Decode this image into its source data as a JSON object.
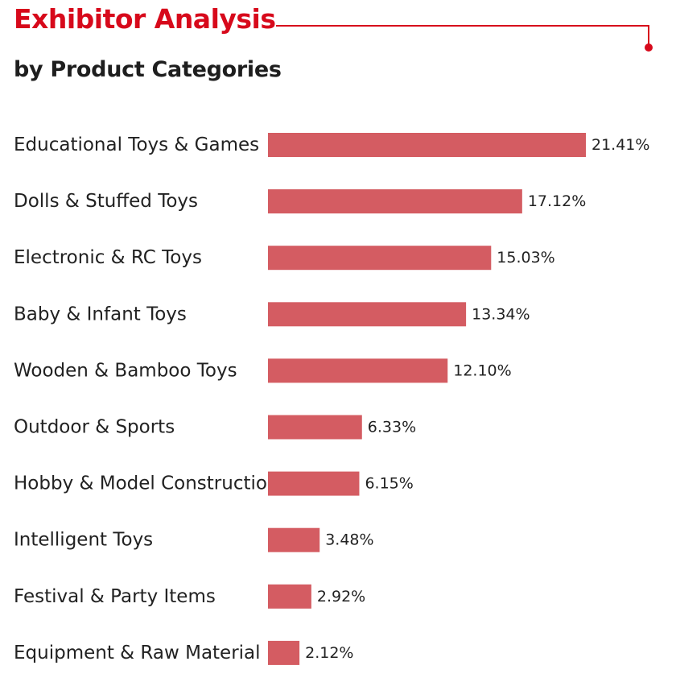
{
  "header": {
    "title": "Exhibitor Analysis",
    "subtitle": "by Product Categories"
  },
  "colors": {
    "accent": "#d7091b",
    "bar": "#d45c62",
    "text": "#222222"
  },
  "chart_data": {
    "type": "bar",
    "orientation": "horizontal",
    "title": "Exhibitor Analysis",
    "subtitle": "by Product Categories",
    "categories": [
      "Educational Toys & Games",
      "Dolls & Stuffed Toys",
      "Electronic & RC Toys",
      "Baby & Infant Toys",
      "Wooden & Bamboo Toys",
      "Outdoor & Sports",
      "Hobby & Model Construction",
      "Intelligent Toys",
      "Festival & Party Items",
      "Equipment & Raw Material"
    ],
    "values": [
      21.41,
      17.12,
      15.03,
      13.34,
      12.1,
      6.33,
      6.15,
      3.48,
      2.92,
      2.12
    ],
    "value_labels": [
      "21.41%",
      "17.12%",
      "15.03%",
      "13.34%",
      "12.10%",
      "6.33%",
      "6.15%",
      "3.48%",
      "2.92%",
      "2.12%"
    ],
    "grid": false,
    "legend": "none"
  }
}
